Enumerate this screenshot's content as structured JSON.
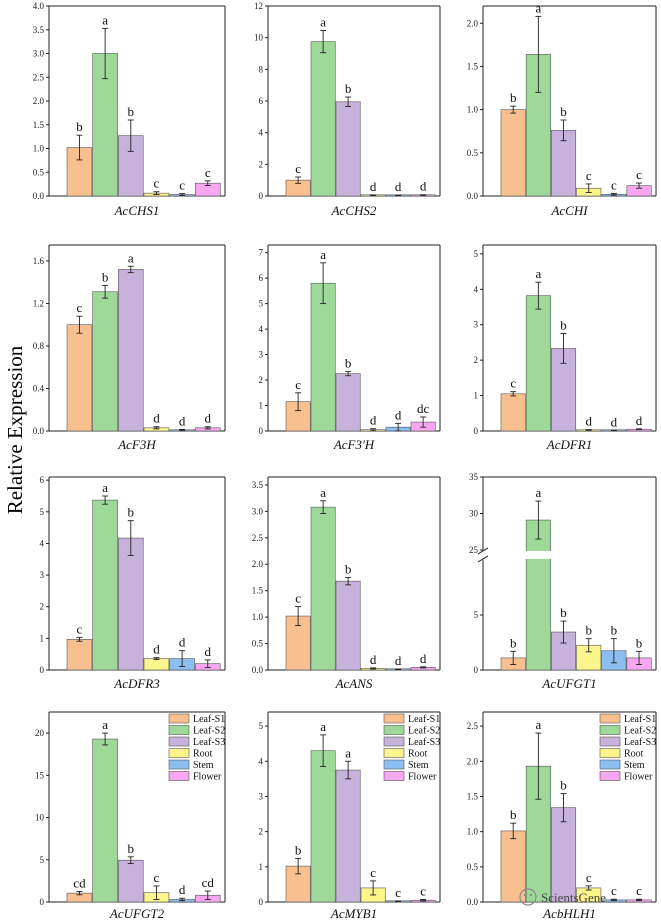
{
  "figure": {
    "ylabel": "Relative Expression",
    "watermark": "ScientsGene",
    "colors": {
      "Leaf-S1": "#f8c08e",
      "Leaf-S2": "#9ed99a",
      "Leaf-S3": "#c7b2dc",
      "Root": "#fbf58c",
      "Stem": "#8cbef2",
      "Flower": "#f7a7f0"
    }
  },
  "legend": [
    "Leaf-S1",
    "Leaf-S2",
    "Leaf-S3",
    "Root",
    "Stem",
    "Flower"
  ],
  "chart_data": [
    {
      "type": "bar",
      "title": "AcCHS1",
      "categories": [
        "Leaf-S1",
        "Leaf-S2",
        "Leaf-S3",
        "Root",
        "Stem",
        "Flower"
      ],
      "values": [
        1.02,
        3.0,
        1.27,
        0.06,
        0.03,
        0.27
      ],
      "errors": [
        0.26,
        0.53,
        0.33,
        0.03,
        0.02,
        0.05
      ],
      "letters": [
        "b",
        "a",
        "b",
        "c",
        "c",
        "c"
      ],
      "ylim": [
        0,
        4.0
      ],
      "yticks": [
        "0.0",
        "0.5",
        "1.0",
        "1.5",
        "2.0",
        "2.5",
        "3.0",
        "3.5",
        "4.0"
      ],
      "legend": false
    },
    {
      "type": "bar",
      "title": "AcCHS2",
      "categories": [
        "Leaf-S1",
        "Leaf-S2",
        "Leaf-S3",
        "Root",
        "Stem",
        "Flower"
      ],
      "values": [
        1.0,
        9.75,
        5.95,
        0.05,
        0.03,
        0.05
      ],
      "errors": [
        0.2,
        0.7,
        0.3,
        0.02,
        0.02,
        0.03
      ],
      "letters": [
        "c",
        "a",
        "b",
        "d",
        "d",
        "d"
      ],
      "ylim": [
        0,
        12
      ],
      "yticks": [
        "0",
        "2",
        "4",
        "6",
        "8",
        "10",
        "12"
      ],
      "legend": false
    },
    {
      "type": "bar",
      "title": "AcCHI",
      "categories": [
        "Leaf-S1",
        "Leaf-S2",
        "Leaf-S3",
        "Root",
        "Stem",
        "Flower"
      ],
      "values": [
        1.0,
        1.64,
        0.76,
        0.09,
        0.02,
        0.12
      ],
      "errors": [
        0.04,
        0.44,
        0.12,
        0.05,
        0.01,
        0.03
      ],
      "letters": [
        "b",
        "a",
        "b",
        "c",
        "c",
        "c"
      ],
      "ylim": [
        0,
        2.2
      ],
      "yticks": [
        "0.0",
        "0.5",
        "1.0",
        "1.5",
        "2.0"
      ],
      "legend": false
    },
    {
      "type": "bar",
      "title": "AcF3H",
      "categories": [
        "Leaf-S1",
        "Leaf-S2",
        "Leaf-S3",
        "Root",
        "Stem",
        "Flower"
      ],
      "values": [
        1.0,
        1.31,
        1.52,
        0.03,
        0.01,
        0.03
      ],
      "errors": [
        0.08,
        0.06,
        0.03,
        0.01,
        0.005,
        0.01
      ],
      "letters": [
        "c",
        "b",
        "a",
        "d",
        "d",
        "d"
      ],
      "ylim": [
        0,
        1.75
      ],
      "yticks": [
        "0.0",
        "0.4",
        "0.8",
        "1.2",
        "1.6"
      ],
      "legend": false
    },
    {
      "type": "bar",
      "title": "AcF3'H",
      "categories": [
        "Leaf-S1",
        "Leaf-S2",
        "Leaf-S3",
        "Root",
        "Stem",
        "Flower"
      ],
      "values": [
        1.15,
        5.8,
        2.25,
        0.05,
        0.15,
        0.35
      ],
      "errors": [
        0.35,
        0.8,
        0.08,
        0.04,
        0.15,
        0.2
      ],
      "letters": [
        "c",
        "a",
        "b",
        "d",
        "d",
        "dc"
      ],
      "ylim": [
        0,
        7.3
      ],
      "yticks": [
        "0",
        "1",
        "2",
        "3",
        "4",
        "5",
        "6",
        "7"
      ],
      "legend": false
    },
    {
      "type": "bar",
      "title": "AcDFR1",
      "categories": [
        "Leaf-S1",
        "Leaf-S2",
        "Leaf-S3",
        "Root",
        "Stem",
        "Flower"
      ],
      "values": [
        1.05,
        3.82,
        2.33,
        0.03,
        0.01,
        0.05
      ],
      "errors": [
        0.06,
        0.38,
        0.42,
        0.01,
        0.005,
        0.01
      ],
      "letters": [
        "c",
        "a",
        "b",
        "d",
        "d",
        "d"
      ],
      "ylim": [
        0,
        5.25
      ],
      "yticks": [
        "0",
        "1",
        "2",
        "3",
        "4",
        "5"
      ],
      "legend": false
    },
    {
      "type": "bar",
      "title": "AcDFR3",
      "categories": [
        "Leaf-S1",
        "Leaf-S2",
        "Leaf-S3",
        "Root",
        "Stem",
        "Flower"
      ],
      "values": [
        0.97,
        5.37,
        4.17,
        0.36,
        0.36,
        0.2
      ],
      "errors": [
        0.06,
        0.13,
        0.55,
        0.03,
        0.25,
        0.12
      ],
      "letters": [
        "c",
        "a",
        "b",
        "d",
        "d",
        "d"
      ],
      "ylim": [
        0,
        6.1
      ],
      "yticks": [
        "0",
        "1",
        "2",
        "3",
        "4",
        "5",
        "6"
      ],
      "legend": false
    },
    {
      "type": "bar",
      "title": "AcANS",
      "categories": [
        "Leaf-S1",
        "Leaf-S2",
        "Leaf-S3",
        "Root",
        "Stem",
        "Flower"
      ],
      "values": [
        1.02,
        3.08,
        1.68,
        0.03,
        0.01,
        0.05
      ],
      "errors": [
        0.18,
        0.12,
        0.07,
        0.01,
        0.005,
        0.01
      ],
      "letters": [
        "c",
        "a",
        "b",
        "d",
        "d",
        "d"
      ],
      "ylim": [
        0,
        3.65
      ],
      "yticks": [
        "0.0",
        "0.5",
        "1.0",
        "1.5",
        "2.0",
        "2.5",
        "3.0",
        "3.5"
      ],
      "legend": false
    },
    {
      "type": "bar",
      "title": "AcUFGT1",
      "categories": [
        "Leaf-S1",
        "Leaf-S2",
        "Leaf-S3",
        "Root",
        "Stem",
        "Flower"
      ],
      "values": [
        1.1,
        29.1,
        3.45,
        2.25,
        1.75,
        1.1
      ],
      "errors": [
        0.6,
        2.6,
        1.0,
        0.6,
        1.1,
        0.6
      ],
      "letters": [
        "b",
        "a",
        "b",
        "b",
        "b",
        "b"
      ],
      "ylim": [
        0,
        35
      ],
      "yticks": [
        "0",
        "5",
        "25",
        "30",
        "35"
      ],
      "broken_axis": {
        "lower": [
          0,
          10
        ],
        "upper": [
          25,
          35
        ]
      },
      "legend": false
    },
    {
      "type": "bar",
      "title": "AcUFGT2",
      "categories": [
        "Leaf-S1",
        "Leaf-S2",
        "Leaf-S3",
        "Root",
        "Stem",
        "Flower"
      ],
      "values": [
        1.05,
        19.3,
        4.95,
        1.1,
        0.3,
        0.8
      ],
      "errors": [
        0.2,
        0.7,
        0.4,
        0.8,
        0.15,
        0.5
      ],
      "letters": [
        "cd",
        "a",
        "b",
        "c",
        "d",
        "cd"
      ],
      "ylim": [
        0,
        22.5
      ],
      "yticks": [
        "0",
        "5",
        "10",
        "15",
        "20"
      ],
      "legend": true
    },
    {
      "type": "bar",
      "title": "AcMYB1",
      "categories": [
        "Leaf-S1",
        "Leaf-S2",
        "Leaf-S3",
        "Root",
        "Stem",
        "Flower"
      ],
      "values": [
        1.02,
        4.3,
        3.75,
        0.4,
        0.02,
        0.05
      ],
      "errors": [
        0.22,
        0.45,
        0.25,
        0.2,
        0.01,
        0.02
      ],
      "letters": [
        "b",
        "a",
        "a",
        "c",
        "c",
        "c"
      ],
      "ylim": [
        0,
        5.4
      ],
      "yticks": [
        "0",
        "1",
        "2",
        "3",
        "4",
        "5"
      ],
      "legend": true
    },
    {
      "type": "bar",
      "title": "AcbHLH1",
      "categories": [
        "Leaf-S1",
        "Leaf-S2",
        "Leaf-S3",
        "Root",
        "Stem",
        "Flower"
      ],
      "values": [
        1.01,
        1.93,
        1.34,
        0.2,
        0.03,
        0.03
      ],
      "errors": [
        0.11,
        0.47,
        0.2,
        0.03,
        0.01,
        0.01
      ],
      "letters": [
        "b",
        "a",
        "b",
        "c",
        "c",
        "c"
      ],
      "ylim": [
        0,
        2.7
      ],
      "yticks": [
        "0.0",
        "0.5",
        "1.0",
        "1.5",
        "2.0",
        "2.5"
      ],
      "legend": true
    }
  ]
}
